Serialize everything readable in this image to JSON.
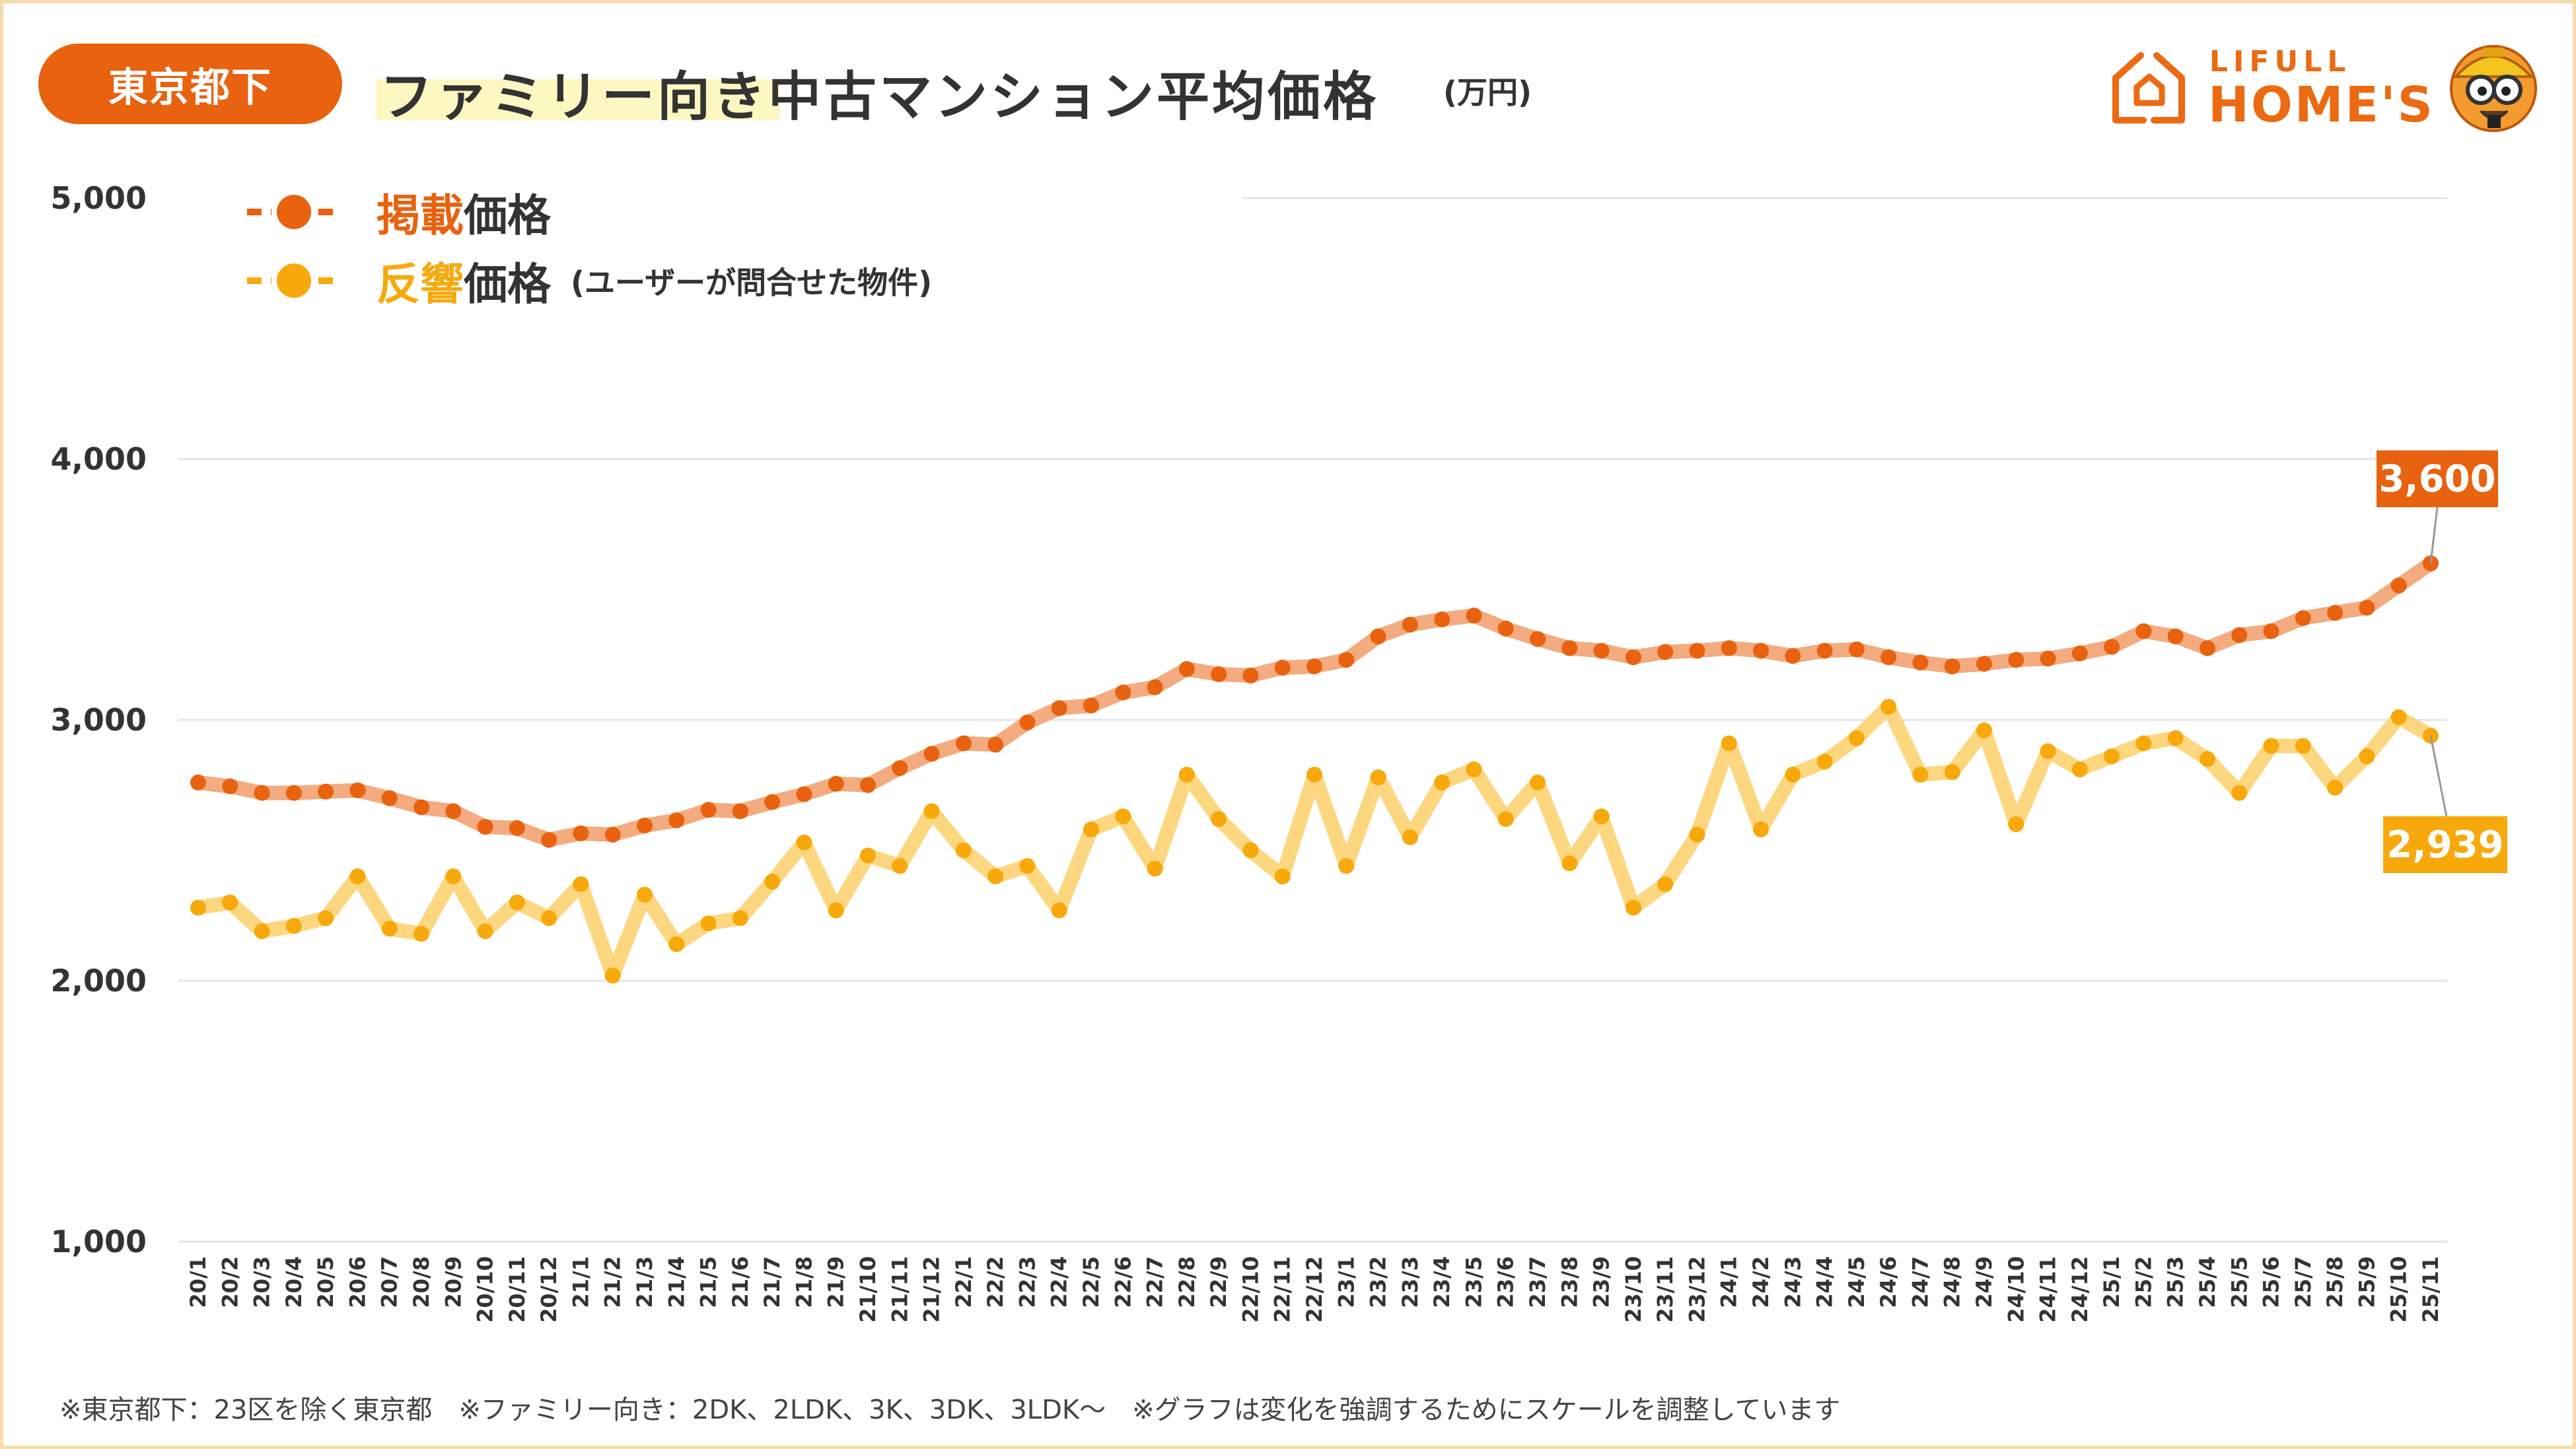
{
  "header": {
    "region_badge": "東京都下",
    "title": "ファミリー向き中古マンション平均価格",
    "unit": "(万円)"
  },
  "logo": {
    "line1": "LIFULL",
    "line2": "HOME'S"
  },
  "legend": {
    "listed_accent": "掲載",
    "listed_rest": "価格",
    "response_accent": "反響",
    "response_rest": "価格",
    "response_note": "(ユーザーが問合せた物件)"
  },
  "footnote": "※東京都下：23区を除く東京都　※ファミリー向き：2DK、2LDK、3K、3DK、3LDK〜　※グラフは変化を強調するためにスケールを調整しています",
  "colors": {
    "listed": "#e8620f",
    "listed_line": "#f3ab7f",
    "response": "#f7a90c",
    "response_line": "#fdd680",
    "badge": "#e8620f",
    "grid": "#e5e5e5"
  },
  "chart_data": {
    "type": "line",
    "title": "ファミリー向き中古マンション平均価格",
    "ylabel": "万円",
    "xlabel": "",
    "ylim": [
      1000,
      5000
    ],
    "yticks": [
      1000,
      2000,
      3000,
      4000,
      5000
    ],
    "ytick_labels": [
      "1,000",
      "2,000",
      "3,000",
      "4,000",
      "5,000"
    ],
    "grid": true,
    "legend_position": "top-left",
    "categories": [
      "20/1",
      "20/2",
      "20/3",
      "20/4",
      "20/5",
      "20/6",
      "20/7",
      "20/8",
      "20/9",
      "20/10",
      "20/11",
      "20/12",
      "21/1",
      "21/2",
      "21/3",
      "21/4",
      "21/5",
      "21/6",
      "21/7",
      "21/8",
      "21/9",
      "21/10",
      "21/11",
      "21/12",
      "22/1",
      "22/2",
      "22/3",
      "22/4",
      "22/5",
      "22/6",
      "22/7",
      "22/8",
      "22/9",
      "22/10",
      "22/11",
      "22/12",
      "23/1",
      "23/2",
      "23/3",
      "23/4",
      "23/5",
      "23/6",
      "23/7",
      "23/8",
      "23/9",
      "23/10",
      "23/11",
      "23/12",
      "24/1",
      "24/2",
      "24/3",
      "24/4",
      "24/5",
      "24/6",
      "24/7",
      "24/8",
      "24/9",
      "24/10",
      "24/11",
      "24/12",
      "25/1",
      "25/2",
      "25/3",
      "25/4",
      "25/5",
      "25/6",
      "25/7",
      "25/8",
      "25/9",
      "25/10",
      "25/11"
    ],
    "series": [
      {
        "name": "掲載価格",
        "values": [
          2760,
          2745,
          2720,
          2720,
          2725,
          2730,
          2700,
          2665,
          2650,
          2590,
          2585,
          2540,
          2565,
          2560,
          2595,
          2615,
          2655,
          2650,
          2685,
          2715,
          2755,
          2750,
          2815,
          2870,
          2910,
          2905,
          2990,
          3045,
          3055,
          3105,
          3125,
          3195,
          3175,
          3170,
          3200,
          3205,
          3230,
          3320,
          3365,
          3385,
          3400,
          3350,
          3310,
          3275,
          3265,
          3240,
          3260,
          3265,
          3275,
          3265,
          3245,
          3265,
          3270,
          3240,
          3220,
          3205,
          3215,
          3230,
          3235,
          3255,
          3280,
          3340,
          3320,
          3275,
          3325,
          3340,
          3390,
          3410,
          3430,
          3515,
          3600
        ],
        "callout": "3,600"
      },
      {
        "name": "反響価格",
        "values": [
          2280,
          2300,
          2190,
          2210,
          2240,
          2400,
          2200,
          2180,
          2400,
          2190,
          2300,
          2240,
          2370,
          2020,
          2330,
          2140,
          2220,
          2240,
          2380,
          2530,
          2270,
          2480,
          2440,
          2650,
          2500,
          2400,
          2440,
          2270,
          2580,
          2630,
          2430,
          2790,
          2620,
          2500,
          2400,
          2790,
          2440,
          2780,
          2550,
          2760,
          2810,
          2620,
          2760,
          2450,
          2630,
          2280,
          2370,
          2560,
          2910,
          2580,
          2790,
          2840,
          2930,
          3050,
          2790,
          2800,
          2960,
          2600,
          2880,
          2810,
          2860,
          2910,
          2930,
          2850,
          2720,
          2900,
          2900,
          2740,
          2860,
          3010,
          2939
        ],
        "callout": "2,939"
      }
    ]
  }
}
